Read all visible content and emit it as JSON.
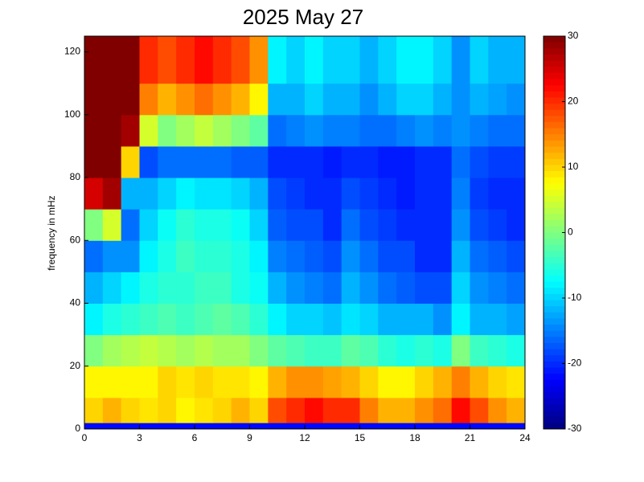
{
  "chart_data": {
    "type": "heatmap",
    "title": "2025 May 27",
    "ylabel": "frequency in mHz",
    "xlim": [
      0,
      24
    ],
    "xticks": [
      0,
      3,
      6,
      9,
      12,
      15,
      18,
      21,
      24
    ],
    "ylim": [
      0,
      125
    ],
    "yticks": [
      0,
      20,
      40,
      60,
      80,
      100,
      120
    ],
    "clim": [
      -30,
      30
    ],
    "cticks": [
      -30,
      -20,
      -10,
      0,
      10,
      20,
      30
    ],
    "colormap": "jet",
    "x_bins": [
      0,
      1,
      2,
      3,
      4,
      5,
      6,
      7,
      8,
      9,
      10,
      11,
      12,
      13,
      14,
      15,
      16,
      17,
      18,
      19,
      20,
      21,
      22,
      23,
      24
    ],
    "y_bins": [
      0,
      2,
      10,
      20,
      30,
      40,
      50,
      60,
      70,
      80,
      90,
      100,
      110,
      125
    ],
    "z": [
      [
        -22,
        -22,
        -22,
        -22,
        -22,
        -22,
        -22,
        -22,
        -22,
        -22,
        -22,
        -22,
        -22,
        -22,
        -22,
        -22,
        -22,
        -22,
        -22,
        -22,
        -22,
        -22,
        -22,
        -22
      ],
      [
        10,
        12,
        10,
        9,
        10,
        8,
        9,
        10,
        12,
        10,
        18,
        20,
        22,
        20,
        20,
        15,
        12,
        12,
        14,
        16,
        22,
        18,
        14,
        12
      ],
      [
        8,
        8,
        8,
        8,
        10,
        9,
        10,
        9,
        9,
        8,
        12,
        14,
        14,
        13,
        12,
        10,
        8,
        8,
        10,
        12,
        15,
        12,
        10,
        9
      ],
      [
        0,
        2,
        3,
        4,
        3,
        2,
        3,
        2,
        2,
        0,
        -2,
        -3,
        -4,
        -4,
        -2,
        -3,
        -5,
        -6,
        -5,
        -6,
        0,
        -4,
        -5,
        -6
      ],
      [
        -8,
        -6,
        -5,
        -4,
        -3,
        -4,
        -3,
        -2,
        -3,
        -5,
        -8,
        -10,
        -10,
        -11,
        -9,
        -10,
        -12,
        -12,
        -12,
        -14,
        -8,
        -12,
        -12,
        -13
      ],
      [
        -12,
        -10,
        -8,
        -6,
        -5,
        -5,
        -4,
        -4,
        -6,
        -7,
        -12,
        -14,
        -15,
        -16,
        -12,
        -14,
        -16,
        -17,
        -18,
        -18,
        -10,
        -14,
        -15,
        -16
      ],
      [
        -16,
        -14,
        -14,
        -8,
        -6,
        -4,
        -5,
        -5,
        -6,
        -8,
        -15,
        -16,
        -17,
        -18,
        -14,
        -16,
        -18,
        -18,
        -20,
        -20,
        -12,
        -16,
        -17,
        -18
      ],
      [
        0,
        5,
        -16,
        -10,
        -7,
        -5,
        -6,
        -6,
        -7,
        -10,
        -17,
        -18,
        -18,
        -20,
        -16,
        -18,
        -19,
        -20,
        -20,
        -20,
        -14,
        -18,
        -19,
        -20
      ],
      [
        25,
        28,
        -12,
        -12,
        -10,
        -8,
        -9,
        -9,
        -10,
        -12,
        -18,
        -19,
        -20,
        -20,
        -18,
        -19,
        -20,
        -21,
        -20,
        -20,
        -15,
        -19,
        -20,
        -20
      ],
      [
        30,
        30,
        10,
        -18,
        -16,
        -16,
        -16,
        -16,
        -17,
        -17,
        -20,
        -20,
        -20,
        -21,
        -20,
        -20,
        -21,
        -21,
        -20,
        -20,
        -16,
        -18,
        -19,
        -19
      ],
      [
        30,
        30,
        28,
        5,
        0,
        2,
        4,
        2,
        0,
        -2,
        -16,
        -15,
        -14,
        -15,
        -15,
        -16,
        -16,
        -15,
        -14,
        -15,
        -14,
        -15,
        -16,
        -16
      ],
      [
        30,
        30,
        30,
        15,
        12,
        14,
        16,
        14,
        12,
        8,
        -12,
        -12,
        -10,
        -12,
        -12,
        -14,
        -12,
        -10,
        -10,
        -12,
        -14,
        -12,
        -13,
        -14
      ],
      [
        30,
        30,
        30,
        20,
        18,
        20,
        22,
        20,
        18,
        14,
        -8,
        -10,
        -8,
        -10,
        -10,
        -12,
        -10,
        -8,
        -8,
        -10,
        -14,
        -10,
        -12,
        -12
      ]
    ]
  }
}
